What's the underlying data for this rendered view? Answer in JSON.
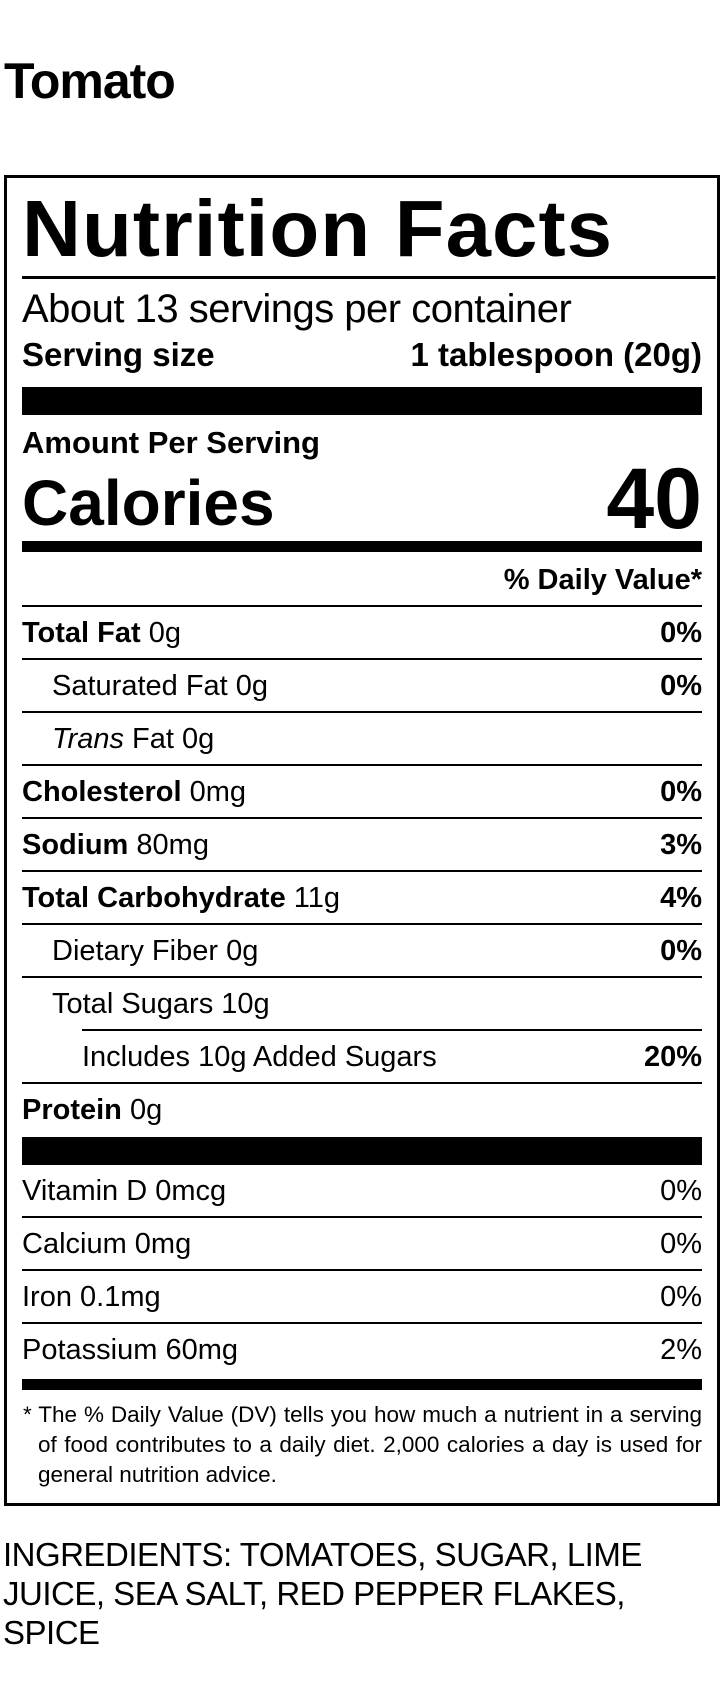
{
  "product": "Tomato",
  "label": {
    "title": "Nutrition Facts",
    "servings": "About 13 servings per container",
    "serving_size_label": "Serving size",
    "serving_size_value": "1 tablespoon (20g)",
    "amount_per_serving": "Amount Per Serving",
    "calories_label": "Calories",
    "calories_value": "40",
    "dv_header": "% Daily Value*",
    "nutrients": [
      {
        "name": "Total Fat",
        "amount": "0g",
        "dv": "0%"
      },
      {
        "name": "Saturated Fat",
        "amount": "0g",
        "dv": "0%"
      },
      {
        "name": "Trans",
        "name_rest": "Fat",
        "amount": "0g"
      },
      {
        "name": "Cholesterol",
        "amount": "0mg",
        "dv": "0%"
      },
      {
        "name": "Sodium",
        "amount": "80mg",
        "dv": "3%"
      },
      {
        "name": "Total Carbohydrate",
        "amount": "11g",
        "dv": "4%"
      },
      {
        "name": "Dietary Fiber",
        "amount": "0g",
        "dv": "0%"
      },
      {
        "name": "Total Sugars",
        "amount": "10g"
      },
      {
        "name": "Includes 10g Added Sugars",
        "dv": "20%"
      },
      {
        "name": "Protein",
        "amount": "0g"
      }
    ],
    "vitamins": [
      {
        "text": "Vitamin D 0mcg",
        "dv": "0%"
      },
      {
        "text": "Calcium 0mg",
        "dv": "0%"
      },
      {
        "text": "Iron 0.1mg",
        "dv": "0%"
      },
      {
        "text": "Potassium 60mg",
        "dv": "2%"
      }
    ],
    "footnote": "* The % Daily Value (DV) tells you how much a nutrient in a serving of food contributes to a daily diet. 2,000 calories a day is used for general nutrition advice."
  },
  "ingredients": "INGREDIENTS: TOMATOES, SUGAR, LIME JUICE, SEA SALT, RED PEPPER FLAKES, SPICE"
}
